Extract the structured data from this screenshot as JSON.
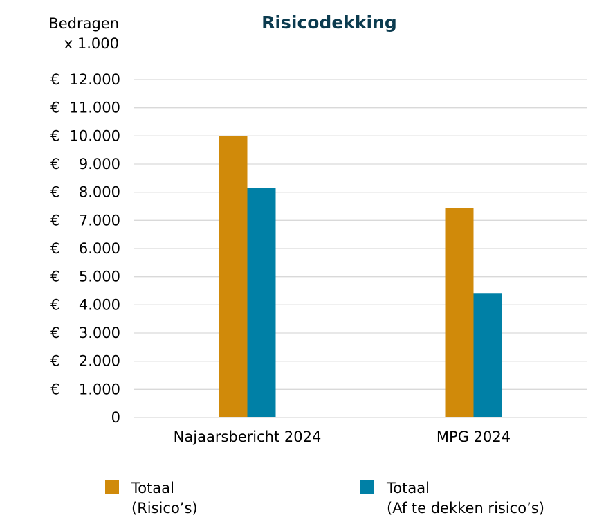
{
  "colors": {
    "title": "#0b3b4f",
    "series_1": "#d08a0a",
    "series_2": "#0080a6",
    "grid": "#d9d9d9"
  },
  "chart_data": {
    "type": "bar",
    "title": "Risicodekking",
    "ylabel_line1": "Bedragen",
    "ylabel_line2": "x 1.000",
    "categories": [
      "Najaarsbericht 2024",
      "MPG 2024"
    ],
    "series": [
      {
        "name_line1": "Totaal",
        "name_line2": "(Risico’s)",
        "values": [
          10000,
          7450
        ]
      },
      {
        "name_line1": "Totaal",
        "name_line2": "(Af te dekken risico’s)",
        "values": [
          8150,
          4420
        ]
      }
    ],
    "ylim": [
      0,
      12000
    ],
    "grid": true,
    "legend_position": "bottom",
    "y_ticks": [
      {
        "value": 0,
        "currency": "",
        "amount": "0"
      },
      {
        "value": 1000,
        "currency": "€",
        "amount": "1.000"
      },
      {
        "value": 2000,
        "currency": "€",
        "amount": "2.000"
      },
      {
        "value": 3000,
        "currency": "€",
        "amount": "3.000"
      },
      {
        "value": 4000,
        "currency": "€",
        "amount": "4.000"
      },
      {
        "value": 5000,
        "currency": "€",
        "amount": "5.000"
      },
      {
        "value": 6000,
        "currency": "€",
        "amount": "6.000"
      },
      {
        "value": 7000,
        "currency": "€",
        "amount": "7.000"
      },
      {
        "value": 8000,
        "currency": "€",
        "amount": "8.000"
      },
      {
        "value": 9000,
        "currency": "€",
        "amount": "9.000"
      },
      {
        "value": 10000,
        "currency": "€",
        "amount": "10.000"
      },
      {
        "value": 11000,
        "currency": "€",
        "amount": "11.000"
      },
      {
        "value": 12000,
        "currency": "€",
        "amount": "12.000"
      }
    ]
  }
}
